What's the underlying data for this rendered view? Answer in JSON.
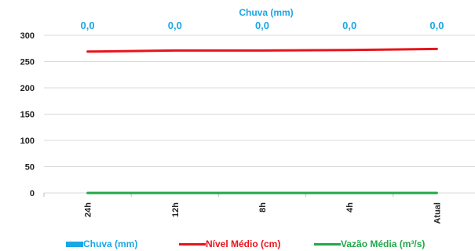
{
  "chart_data": {
    "type": "line",
    "categories": [
      "24h",
      "12h",
      "8h",
      "4h",
      "Atual"
    ],
    "rain_axis_title": "Chuva (mm)",
    "rain_labels": [
      "0,0",
      "0,0",
      "0,0",
      "0,0",
      "0,0"
    ],
    "y_ticks": [
      "0",
      "50",
      "100",
      "150",
      "200",
      "250",
      "300"
    ],
    "ylim": [
      0,
      300
    ],
    "series": [
      {
        "name": "Chuva (mm)",
        "kind": "bar",
        "color": "#1aa7e6",
        "values": [
          0,
          0,
          0,
          0,
          0
        ]
      },
      {
        "name": "Nível Médio (cm)",
        "kind": "line",
        "color": "#e8141c",
        "values": [
          269,
          271,
          271,
          272,
          274
        ]
      },
      {
        "name": "Vazão Média (m³/s)",
        "kind": "line",
        "color": "#22a84a",
        "values": [
          0,
          0,
          0,
          0,
          0
        ]
      }
    ],
    "legend_position": "bottom",
    "grid": "horizontal"
  }
}
